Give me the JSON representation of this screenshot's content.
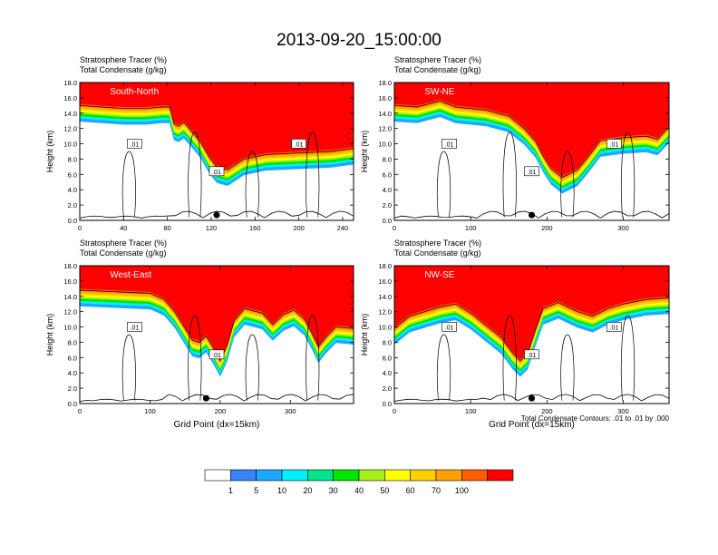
{
  "figure": {
    "title": "2013-09-20_15:00:00",
    "caption": "Total Condensate Contours: .01 to .01 by .000",
    "x_axis_label": "Grid Point (dx=15km)"
  },
  "chart_data": [
    {
      "type": "heatmap",
      "title": "South-North",
      "subtitle_1": "Stratosphere Tracer   (%)",
      "subtitle_2": "Total Condensate   (g/kg)",
      "ylabel": "Height (km)",
      "xlabel": "",
      "xlim": [
        0,
        250
      ],
      "ylim": [
        0,
        18
      ],
      "xticks": [
        0,
        40,
        80,
        120,
        160,
        200,
        240
      ],
      "yticks": [
        0.0,
        2.0,
        4.0,
        6.0,
        8.0,
        10.0,
        12.0,
        14.0,
        16.0,
        18.0
      ],
      "contour_labels": [
        ".01",
        ".01",
        ".01"
      ],
      "marker_x": 125,
      "tropopause": [
        [
          0,
          15.2
        ],
        [
          20,
          15.0
        ],
        [
          40,
          14.8
        ],
        [
          60,
          14.8
        ],
        [
          75,
          15.0
        ],
        [
          82,
          15.0
        ],
        [
          86,
          12.8
        ],
        [
          90,
          12.5
        ],
        [
          95,
          13.0
        ],
        [
          100,
          12.2
        ],
        [
          110,
          10.5
        ],
        [
          118,
          8.5
        ],
        [
          125,
          7.2
        ],
        [
          135,
          6.8
        ],
        [
          150,
          8.2
        ],
        [
          170,
          8.8
        ],
        [
          200,
          9.0
        ],
        [
          230,
          9.2
        ],
        [
          250,
          9.6
        ]
      ]
    },
    {
      "type": "heatmap",
      "title": "SW-NE",
      "subtitle_1": "Stratosphere Tracer   (%)",
      "subtitle_2": "Total Condensate   (g/kg)",
      "ylabel": "Height (km)",
      "xlabel": "",
      "xlim": [
        0,
        360
      ],
      "ylim": [
        0,
        18
      ],
      "xticks": [
        0,
        100,
        200,
        300
      ],
      "yticks": [
        0.0,
        2.0,
        4.0,
        6.0,
        8.0,
        10.0,
        12.0,
        14.0,
        16.0,
        18.0
      ],
      "contour_labels": [
        ".01",
        ".01",
        ".01"
      ],
      "marker_x": 180,
      "tropopause": [
        [
          0,
          15.2
        ],
        [
          30,
          15.0
        ],
        [
          60,
          15.8
        ],
        [
          80,
          15.0
        ],
        [
          120,
          14.6
        ],
        [
          150,
          13.8
        ],
        [
          170,
          12.2
        ],
        [
          185,
          10.5
        ],
        [
          195,
          8.6
        ],
        [
          205,
          7.0
        ],
        [
          220,
          5.8
        ],
        [
          240,
          6.8
        ],
        [
          255,
          8.6
        ],
        [
          270,
          10.6
        ],
        [
          300,
          11.0
        ],
        [
          330,
          11.2
        ],
        [
          345,
          10.8
        ],
        [
          360,
          12.4
        ]
      ]
    },
    {
      "type": "heatmap",
      "title": "West-East",
      "subtitle_1": "Stratosphere Tracer   (%)",
      "subtitle_2": "Total Condensate   (g/kg)",
      "ylabel": "Height (km)",
      "xlabel": "Grid Point (dx=15km)",
      "xlim": [
        0,
        390
      ],
      "ylim": [
        0,
        18
      ],
      "xticks": [
        0,
        100,
        200,
        300
      ],
      "yticks": [
        0.0,
        2.0,
        4.0,
        6.0,
        8.0,
        10.0,
        12.0,
        14.0,
        16.0,
        18.0
      ],
      "contour_labels": [
        ".01",
        ".01"
      ],
      "marker_x": 180,
      "tropopause": [
        [
          0,
          15.0
        ],
        [
          50,
          14.8
        ],
        [
          100,
          14.6
        ],
        [
          120,
          13.8
        ],
        [
          135,
          12.2
        ],
        [
          150,
          10.0
        ],
        [
          160,
          8.5
        ],
        [
          170,
          8.2
        ],
        [
          180,
          9.0
        ],
        [
          190,
          7.5
        ],
        [
          200,
          5.8
        ],
        [
          210,
          7.8
        ],
        [
          220,
          11.0
        ],
        [
          235,
          12.6
        ],
        [
          260,
          12.0
        ],
        [
          275,
          10.5
        ],
        [
          290,
          11.8
        ],
        [
          305,
          12.4
        ],
        [
          320,
          11.2
        ],
        [
          330,
          9.5
        ],
        [
          340,
          7.6
        ],
        [
          350,
          8.8
        ],
        [
          365,
          10.2
        ],
        [
          390,
          10.0
        ]
      ]
    },
    {
      "type": "heatmap",
      "title": "NW-SE",
      "subtitle_1": "Stratosphere Tracer   (%)",
      "subtitle_2": "Total Condensate   (g/kg)",
      "ylabel": "Height (km)",
      "xlabel": "Grid Point (dx=15km)",
      "xlim": [
        0,
        360
      ],
      "ylim": [
        0,
        18
      ],
      "xticks": [
        0,
        100,
        200,
        300
      ],
      "yticks": [
        0.0,
        2.0,
        4.0,
        6.0,
        8.0,
        10.0,
        12.0,
        14.0,
        16.0,
        18.0
      ],
      "contour_labels": [
        ".01",
        ".01",
        ".01"
      ],
      "marker_x": 180,
      "tropopause": [
        [
          0,
          10.0
        ],
        [
          20,
          11.6
        ],
        [
          40,
          12.2
        ],
        [
          60,
          12.8
        ],
        [
          80,
          13.2
        ],
        [
          100,
          12.0
        ],
        [
          120,
          10.4
        ],
        [
          140,
          8.8
        ],
        [
          155,
          6.8
        ],
        [
          165,
          5.8
        ],
        [
          175,
          6.8
        ],
        [
          185,
          9.8
        ],
        [
          195,
          12.6
        ],
        [
          215,
          13.4
        ],
        [
          240,
          12.2
        ],
        [
          260,
          11.6
        ],
        [
          280,
          12.6
        ],
        [
          300,
          13.2
        ],
        [
          330,
          13.8
        ],
        [
          360,
          14.0
        ]
      ]
    }
  ],
  "colorbar": {
    "colors": [
      "#ffffff",
      "#3b82f6",
      "#1ea7ff",
      "#00f0ff",
      "#00e68c",
      "#00e600",
      "#a4f018",
      "#ffff00",
      "#ffd000",
      "#ffa100",
      "#ff5c00",
      "#ff0000"
    ],
    "labels": [
      "1",
      "5",
      "10",
      "20",
      "30",
      "40",
      "50",
      "60",
      "70",
      "100"
    ]
  }
}
